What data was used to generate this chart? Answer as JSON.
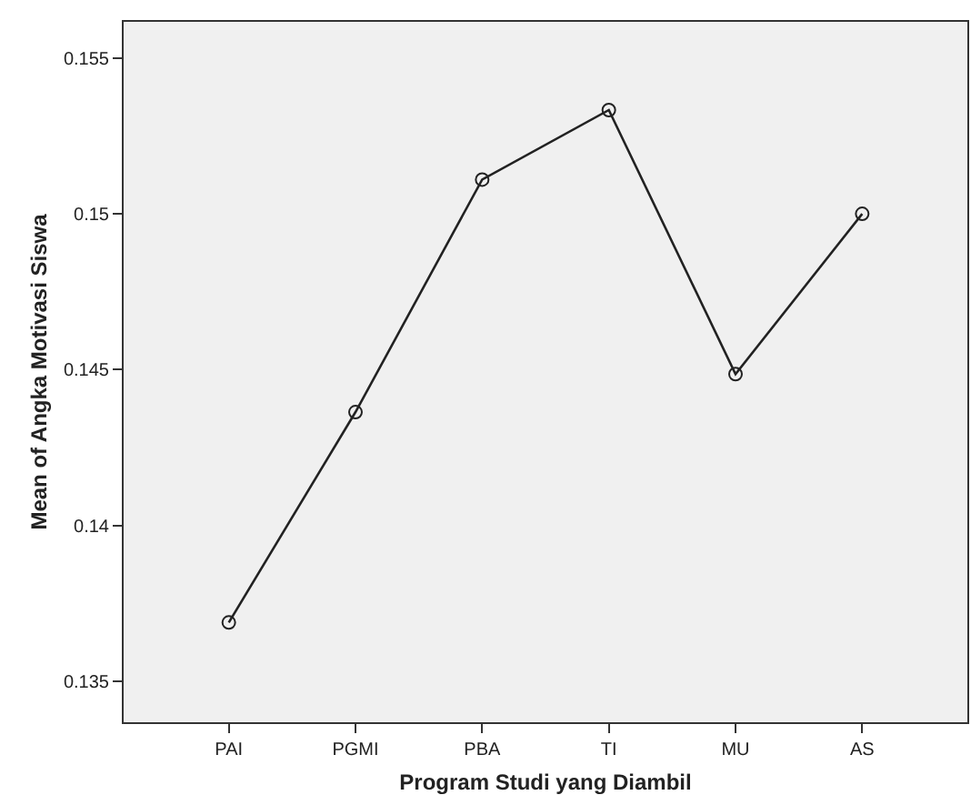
{
  "chart_data": {
    "type": "line",
    "xlabel": "Program Studi yang Diambil",
    "ylabel": "Mean of Angka Motivasi Siswa",
    "categories": [
      "PAI",
      "PGMI",
      "PBA",
      "TI",
      "MU",
      "AS"
    ],
    "series": [
      {
        "color": "#222222",
        "values": [
          0.13689,
          0.14364,
          0.1511,
          0.15333,
          0.14486,
          0.15
        ]
      }
    ],
    "ylim": [
      0.13369,
      0.15616
    ],
    "yticks": [
      0.135,
      0.14,
      0.145,
      0.15,
      0.155
    ],
    "marker": "circle",
    "line_style": "solid",
    "grid": false,
    "legend": false
  }
}
